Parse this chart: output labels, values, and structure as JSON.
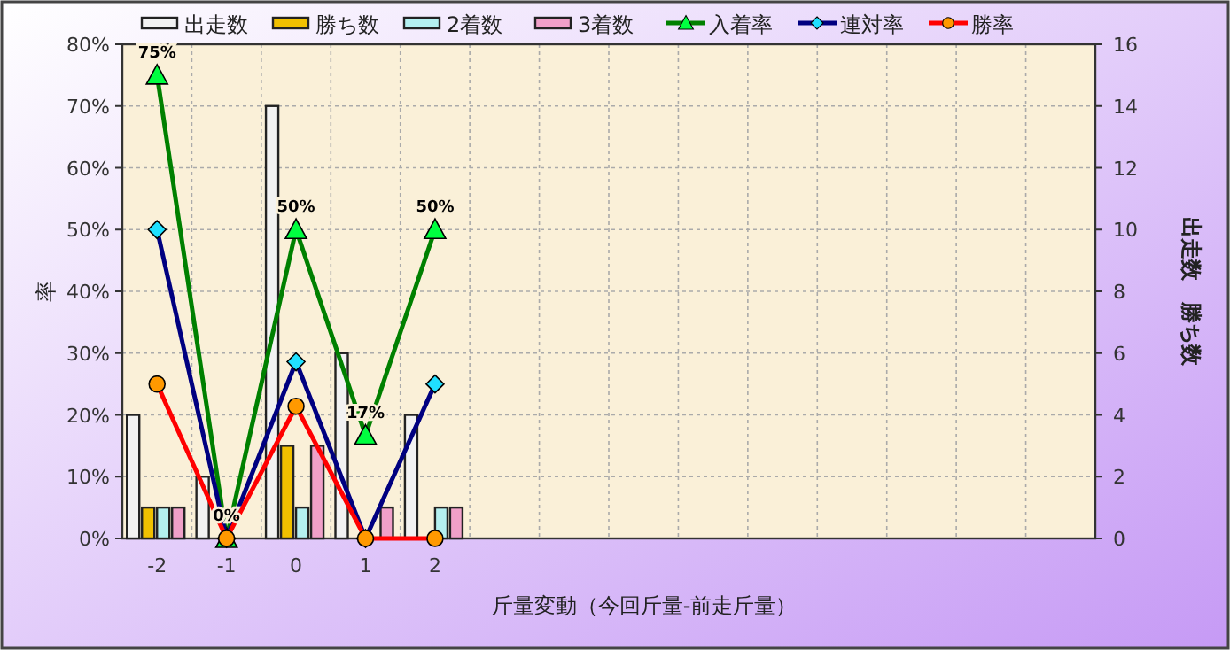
{
  "chart_data": {
    "type": "bar",
    "xlabel": "斤量変動（今回斤量-前走斤量）",
    "ylabel": "率",
    "y2label": "出走数　勝ち数",
    "categories": [
      "-2",
      "-1",
      "0",
      "1",
      "2",
      null,
      null,
      null,
      null,
      null,
      null,
      null,
      null,
      null
    ],
    "ylim": [
      0,
      80
    ],
    "yticks": [
      {
        "value": 0,
        "label": "0%"
      },
      {
        "value": 10,
        "label": "10%"
      },
      {
        "value": 20,
        "label": "20%"
      },
      {
        "value": 30,
        "label": "30%"
      },
      {
        "value": 40,
        "label": "40%"
      },
      {
        "value": 50,
        "label": "50%"
      },
      {
        "value": 60,
        "label": "60%"
      },
      {
        "value": 70,
        "label": "70%"
      },
      {
        "value": 80,
        "label": "80%"
      }
    ],
    "y2lim": [
      0,
      16
    ],
    "y2ticks": [
      0,
      2,
      4,
      6,
      8,
      10,
      12,
      14,
      16
    ],
    "grid": true,
    "legend": "top",
    "series": [
      {
        "name": "出走数",
        "axis": "y2",
        "color": "#f2f2f2",
        "values": [
          4,
          2,
          14,
          6,
          4,
          null,
          null,
          null,
          null,
          null,
          null,
          null,
          null,
          null
        ]
      },
      {
        "name": "勝ち数",
        "axis": "y2",
        "color": "#f0c000",
        "values": [
          1,
          0,
          3,
          0,
          0,
          null,
          null,
          null,
          null,
          null,
          null,
          null,
          null,
          null
        ]
      },
      {
        "name": "2着数",
        "axis": "y2",
        "color": "#b4f0f0",
        "values": [
          1,
          0,
          1,
          0,
          1,
          null,
          null,
          null,
          null,
          null,
          null,
          null,
          null,
          null
        ]
      },
      {
        "name": "3着数",
        "axis": "y2",
        "color": "#f0a0c8",
        "values": [
          1,
          0,
          3,
          1,
          1,
          null,
          null,
          null,
          null,
          null,
          null,
          null,
          null,
          null
        ]
      },
      {
        "name": "入着率",
        "type": "line",
        "marker": "triangle",
        "color": "#008000",
        "values": [
          75,
          0,
          50,
          16.7,
          50,
          null,
          null,
          null,
          null,
          null,
          null,
          null,
          null,
          null
        ],
        "value_labels": [
          "75%",
          "0%",
          "50%",
          "17%",
          "50%",
          null,
          null,
          null,
          null,
          null,
          null,
          null,
          null,
          null
        ]
      },
      {
        "name": "連対率",
        "type": "line",
        "marker": "diamond",
        "color": "#000080",
        "values": [
          50,
          0,
          28.6,
          0,
          25,
          null,
          null,
          null,
          null,
          null,
          null,
          null,
          null,
          null
        ]
      },
      {
        "name": "勝率",
        "type": "line",
        "marker": "circle",
        "color": "#ff0000",
        "values": [
          25,
          0,
          21.4,
          0,
          0,
          null,
          null,
          null,
          null,
          null,
          null,
          null,
          null,
          null
        ]
      }
    ]
  }
}
